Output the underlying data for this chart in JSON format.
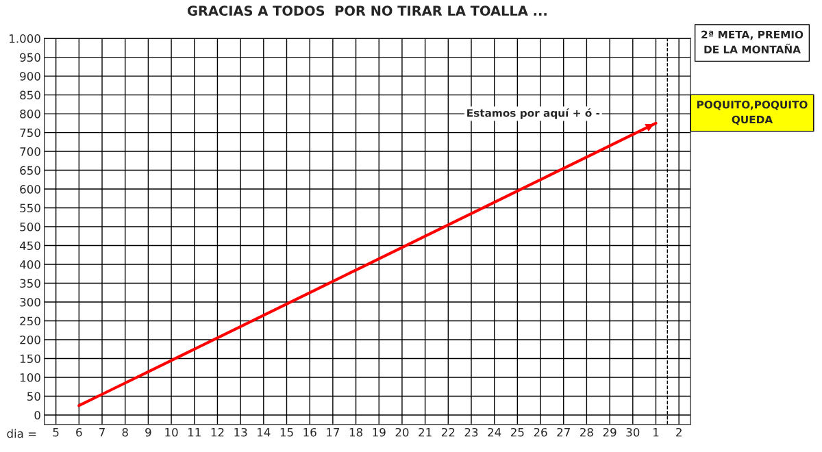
{
  "chart_data": {
    "type": "line",
    "title": "GRACIAS A TODOS  POR NO TIRAR LA TOALLA ...",
    "xlabel": "dia =",
    "categories": [
      "5",
      "6",
      "7",
      "8",
      "9",
      "10",
      "11",
      "12",
      "13",
      "14",
      "15",
      "16",
      "17",
      "18",
      "19",
      "20",
      "21",
      "22",
      "23",
      "24",
      "25",
      "26",
      "27",
      "28",
      "29",
      "30",
      "1",
      "2"
    ],
    "ylim": [
      -25,
      1000
    ],
    "yticks": [
      0,
      50,
      100,
      150,
      200,
      250,
      300,
      350,
      400,
      450,
      500,
      550,
      600,
      650,
      700,
      750,
      800,
      850,
      900,
      950,
      {
        "value": 1000,
        "label": "1.000"
      }
    ],
    "grid": true,
    "series": [
      {
        "color": "#ff0000",
        "values": [
          null,
          25,
          55,
          85,
          115,
          145,
          175,
          205,
          235,
          265,
          295,
          325,
          355,
          385,
          415,
          445,
          475,
          505,
          535,
          565,
          595,
          625,
          655,
          685,
          715,
          745,
          775,
          null
        ]
      }
    ],
    "ref_lines": [
      {
        "axis": "x",
        "value": "2",
        "color": "#000000",
        "line_style": "dashed"
      }
    ],
    "annotations": [
      "Estamos por aquí + ó -",
      "2ª META, PREMIO\nDE LA MONTAÑA",
      "POQUITO,POQUITO\nQUEDA"
    ]
  }
}
